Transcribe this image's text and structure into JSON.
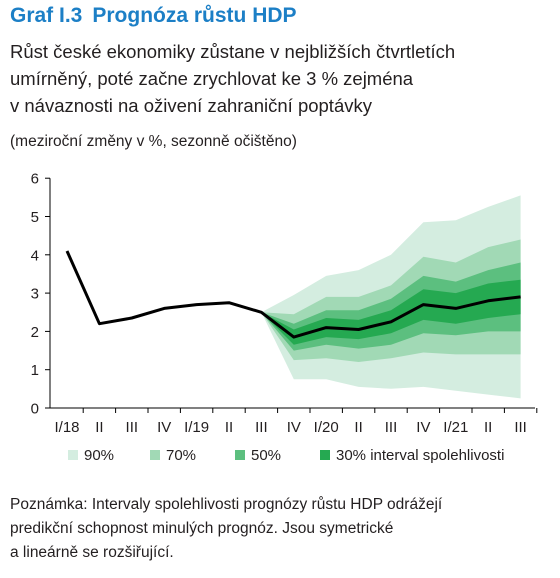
{
  "header": {
    "figure_number": "Graf I.3",
    "title": "Prognóza růstu HDP",
    "subtitle_lines": [
      "Růst české ekonomiky zůstane v nejbližších čtvrtletích",
      "umírněný, poté začne zrychlovat ke 3 % zejména",
      "v návaznosti na oživení zahraniční poptávky"
    ],
    "units": "(meziroční změny v %, sezonně očištěno)"
  },
  "note_lines": [
    "Poznámka: Intervaly spolehlivosti prognózy růstu HDP odrážejí",
    "predikční schopnost minulých prognóz. Jsou symetrické",
    "a lineárně se rozšiřující."
  ],
  "colors": {
    "line": "#000000",
    "band_90": "#d4ede0",
    "band_70": "#a1d9b5",
    "band_50": "#5cbf7f",
    "band_30": "#25a951",
    "axis": "#000000",
    "title": "#1c7fc6"
  },
  "chart_data": {
    "type": "area",
    "title": "Prognóza růstu HDP",
    "xlabel": "",
    "ylabel": "",
    "ylim": [
      0,
      6
    ],
    "yticks": [
      0,
      1,
      2,
      3,
      4,
      5,
      6
    ],
    "grid": false,
    "legend_position": "bottom",
    "categories": [
      "I/18",
      "II",
      "III",
      "IV",
      "I/19",
      "II",
      "III",
      "IV",
      "I/20",
      "II",
      "III",
      "IV",
      "I/21",
      "II",
      "III"
    ],
    "series": [
      {
        "type": "line",
        "values": [
          4.1,
          2.2,
          2.35,
          2.6,
          2.7,
          2.75,
          2.5,
          1.85,
          2.1,
          2.05,
          2.25,
          2.7,
          2.6,
          2.8,
          2.9
        ]
      }
    ],
    "bands": [
      {
        "name": "90%",
        "lower": [
          null,
          null,
          null,
          null,
          null,
          null,
          2.5,
          0.75,
          0.75,
          0.55,
          0.5,
          0.55,
          0.45,
          0.35,
          0.25
        ],
        "upper": [
          null,
          null,
          null,
          null,
          null,
          null,
          2.5,
          2.95,
          3.45,
          3.6,
          4.0,
          4.85,
          4.9,
          5.25,
          5.55
        ]
      },
      {
        "name": "70%",
        "lower": [
          null,
          null,
          null,
          null,
          null,
          null,
          2.5,
          1.25,
          1.3,
          1.2,
          1.3,
          1.45,
          1.4,
          1.4,
          1.4
        ]
      },
      {
        "name": "50%",
        "lower": [
          null,
          null,
          null,
          null,
          null,
          null,
          2.5,
          1.5,
          1.65,
          1.55,
          1.65,
          1.95,
          1.9,
          2.0,
          2.0
        ]
      },
      {
        "name": "30% interval spolehlivosti",
        "lower": [
          null,
          null,
          null,
          null,
          null,
          null,
          2.5,
          1.65,
          1.85,
          1.8,
          1.95,
          2.3,
          2.2,
          2.35,
          2.45
        ]
      }
    ]
  }
}
